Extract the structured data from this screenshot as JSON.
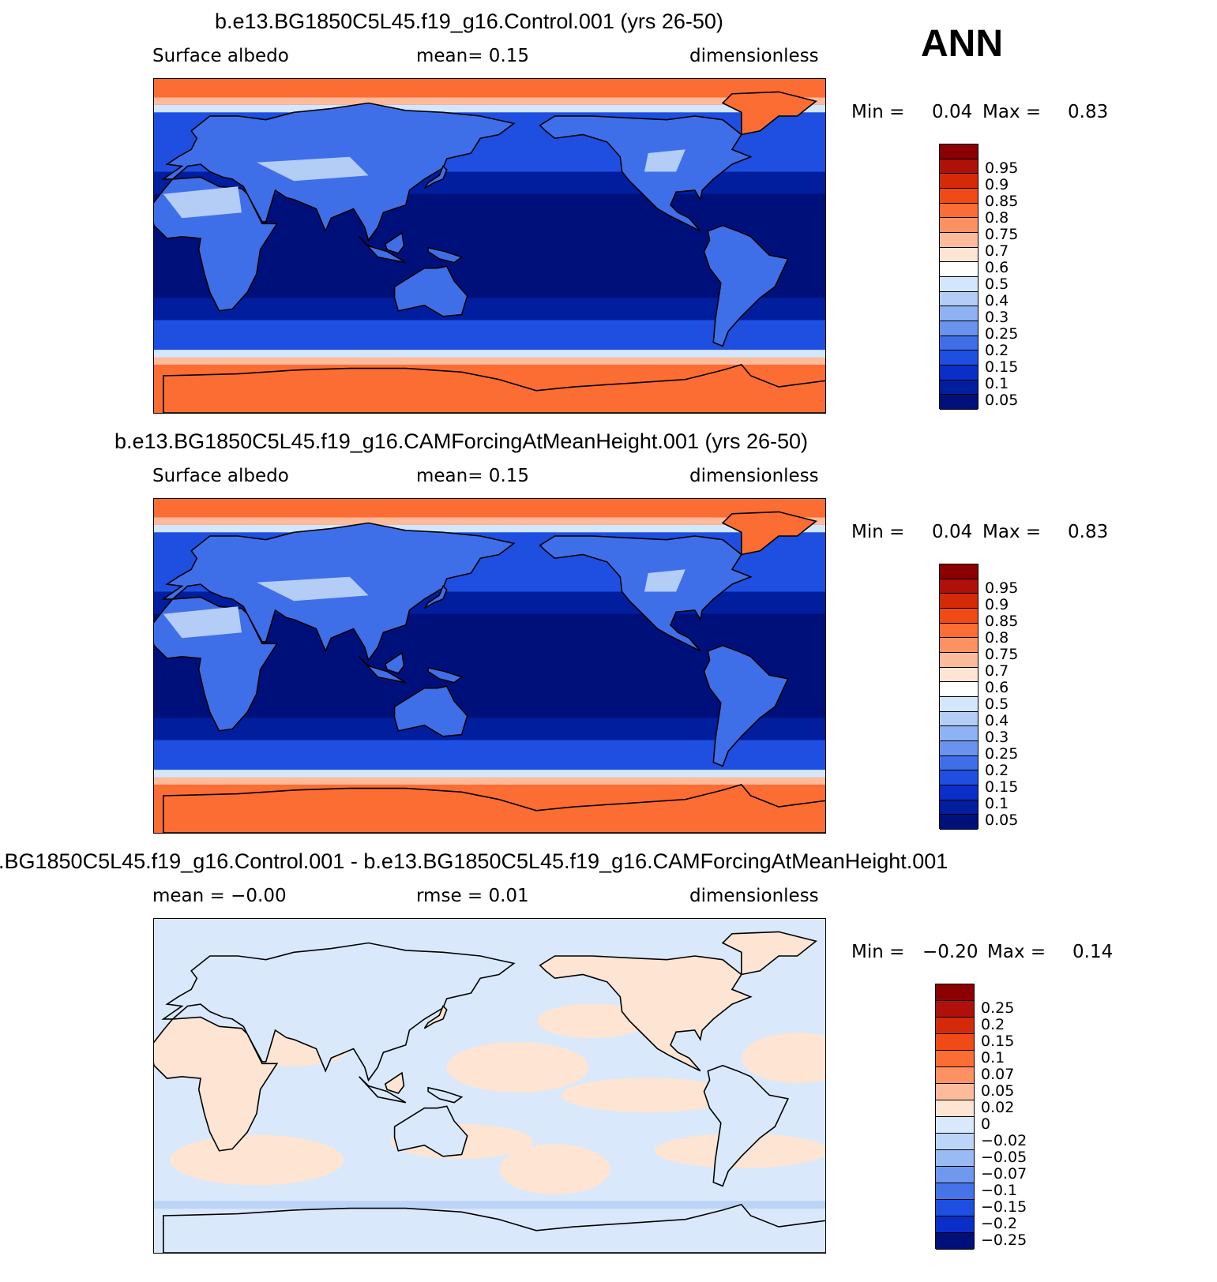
{
  "season": "ANN",
  "panels": [
    {
      "title": "b.e13.BG1850C5L45.f19_g16.Control.001 (yrs 26-50)",
      "left_label": "Surface  albedo",
      "center_label": "mean=     0.15",
      "right_label": "dimensionless",
      "min_label": "Min  =",
      "min_value": "0.04",
      "max_label": "Max  =",
      "max_value": "0.83",
      "scale": "abs"
    },
    {
      "title": "b.e13.BG1850C5L45.f19_g16.CAMForcingAtMeanHeight.001 (yrs 26-50)",
      "left_label": "Surface  albedo",
      "center_label": "mean=     0.15",
      "right_label": "dimensionless",
      "min_label": "Min  =",
      "min_value": "0.04",
      "max_label": "Max  =",
      "max_value": "0.83",
      "scale": "abs"
    },
    {
      "title": ".BG1850C5L45.f19_g16.Control.001 - b.e13.BG1850C5L45.f19_g16.CAMForcingAtMeanHeight.001",
      "left_label": "mean  =    −0.00",
      "center_label": "rmse  =     0.01",
      "right_label": "dimensionless",
      "min_label": "Min  =",
      "min_value": "−0.20",
      "max_label": "Max  =",
      "max_value": "0.14",
      "scale": "diff"
    }
  ],
  "colorbars": {
    "abs": {
      "labels": [
        "0.95",
        "0.9",
        "0.85",
        "0.8",
        "0.75",
        "0.7",
        "0.6",
        "0.5",
        "0.4",
        "0.3",
        "0.25",
        "0.2",
        "0.15",
        "0.1",
        "0.05"
      ],
      "colors": [
        "#8b0000",
        "#b0100a",
        "#d42a0a",
        "#f04a16",
        "#fb6d33",
        "#fc9264",
        "#fdbb9c",
        "#fee4d2",
        "#ffffff",
        "#d4e6fb",
        "#b3cdf7",
        "#8eb2f2",
        "#6a93ee",
        "#3f6fe8",
        "#1e4fe0",
        "#0a2fc8",
        "#001e9e",
        "#00107a"
      ]
    },
    "diff": {
      "labels": [
        "0.25",
        "0.2",
        "0.15",
        "0.1",
        "0.07",
        "0.05",
        "0.02",
        "0",
        "−0.02",
        "−0.05",
        "−0.07",
        "−0.1",
        "−0.15",
        "−0.2",
        "−0.25"
      ],
      "colors": [
        "#8b0000",
        "#b0100a",
        "#d42a0a",
        "#f04a16",
        "#fb6d33",
        "#fc9264",
        "#fdbb9c",
        "#fee4d2",
        "#d9e9fb",
        "#bcd4f8",
        "#98bbf3",
        "#6f98ee",
        "#4474e8",
        "#1e4fe0",
        "#0a2fc8",
        "#00107a"
      ]
    }
  }
}
